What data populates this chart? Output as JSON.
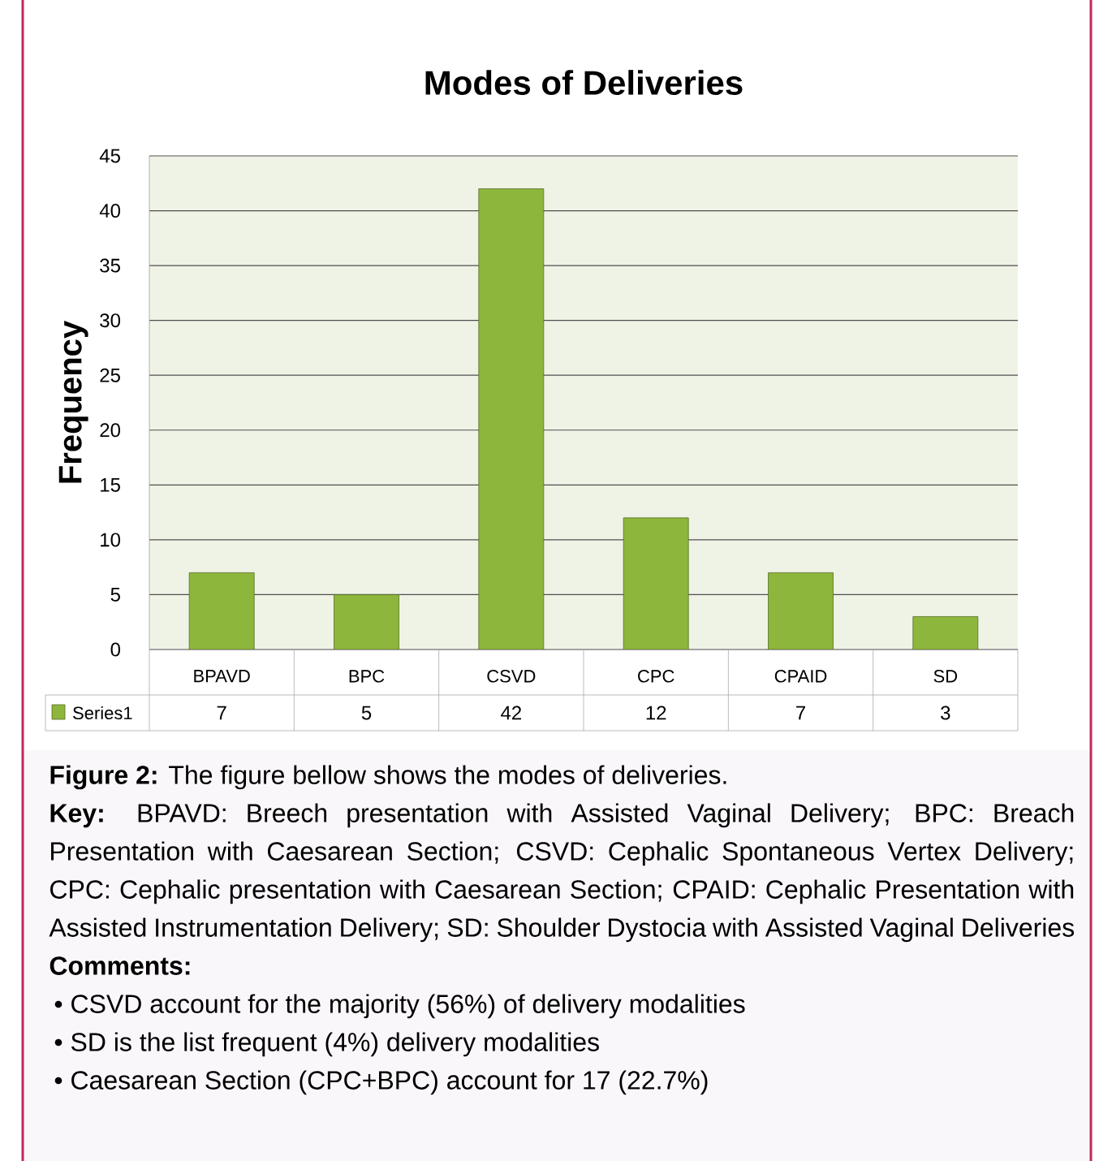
{
  "chart_data": {
    "type": "bar",
    "title": "Modes of Deliveries",
    "ylabel": "Frequency",
    "categories": [
      "BPAVD",
      "BPC",
      "CSVD",
      "CPC",
      "CPAID",
      "SD"
    ],
    "series": [
      {
        "name": "Series1",
        "color": "#8db63c",
        "values": [
          7,
          5,
          42,
          12,
          7,
          3
        ]
      }
    ],
    "ylim": [
      0,
      45
    ],
    "yticks": [
      0,
      5,
      10,
      15,
      20,
      25,
      30,
      35,
      40,
      45
    ],
    "grid": "y",
    "legend": "bottom",
    "data_labels": true,
    "annotations": [
      "**Figure 2:** The figure bellow shows the modes of deliveries.",
      "**Key:** BPAVD: Breech presentation with Assisted Vaginal Delivery; BPC: Breach Presentation with Caesarean Section; CSVD: Cephalic Spontaneous Vertex Delivery; CPC: Cephalic presentation with Caesarean Section; CPAID: Cephalic Presentation with Assisted Instrumentation Delivery; SD: Shoulder Dystocia with Assisted Vaginal Deliveries",
      "Comments:",
      "• CSVD account for the majority (56%) of delivery modalities",
      "• SD is the list frequent (4%) delivery modalities",
      "• Caesarean Section (CPC+BPC) account for 17 (22.7%)"
    ]
  }
}
